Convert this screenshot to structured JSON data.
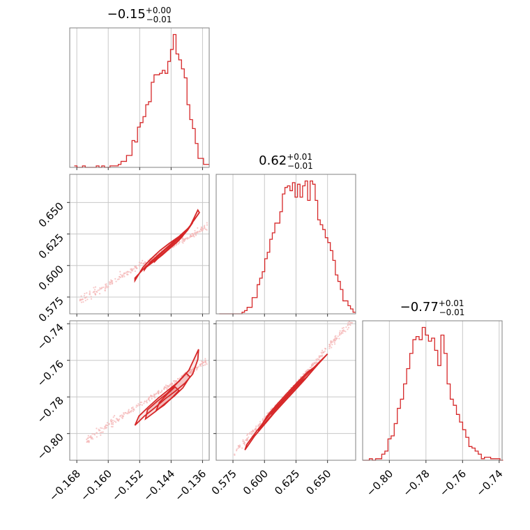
{
  "chart_data": {
    "type": "corner",
    "color": "#d62728",
    "point_color": "#f4b6b6",
    "grid": true,
    "parameters": [
      {
        "title": {
          "value": "−0.15",
          "plus": "+0.00",
          "minus": "−0.01"
        },
        "ticks": [
          -0.168,
          -0.16,
          -0.152,
          -0.144,
          -0.136
        ],
        "tick_labels": [
          "−0.168",
          "−0.160",
          "−0.152",
          "−0.144",
          "−0.136"
        ],
        "range": [
          -0.1698,
          -0.1343
        ],
        "hist": {
          "x": [
            -0.1683,
            -0.1676,
            -0.1669,
            -0.1662,
            -0.1655,
            -0.1648,
            -0.1641,
            -0.1634,
            -0.1627,
            -0.162,
            -0.1613,
            -0.1606,
            -0.1599,
            -0.1592,
            -0.1585,
            -0.1578,
            -0.1571,
            -0.1564,
            -0.1557,
            -0.155,
            -0.1543,
            -0.1536,
            -0.1529,
            -0.1522,
            -0.1515,
            -0.1508,
            -0.1501,
            -0.1494,
            -0.1487,
            -0.148,
            -0.1473,
            -0.1466,
            -0.1459,
            -0.1452,
            -0.1445,
            -0.1438,
            -0.1431,
            -0.1424,
            -0.1417,
            -0.141,
            -0.1403,
            -0.1396,
            -0.1389,
            -0.1382,
            -0.1375,
            -0.1368,
            -0.1361,
            -0.1354,
            -0.1347
          ],
          "counts": [
            1,
            0,
            0,
            1,
            0,
            0,
            0,
            0,
            1,
            0,
            1,
            0,
            0,
            1,
            1,
            1,
            2,
            4,
            4,
            8,
            8,
            18,
            17,
            27,
            30,
            34,
            42,
            44,
            57,
            62,
            62,
            63,
            65,
            63,
            71,
            79,
            89,
            76,
            72,
            66,
            60,
            42,
            32,
            26,
            16,
            6,
            6,
            2,
            2
          ]
        }
      },
      {
        "title": {
          "value": "0.62",
          "plus": "+0.01",
          "minus": "−0.01"
        },
        "ticks": [
          0.575,
          0.6,
          0.625,
          0.65
        ],
        "tick_labels": [
          "0.575",
          "0.600",
          "0.625",
          "0.650"
        ],
        "range": [
          0.5617,
          0.6723
        ],
        "hist": {
          "x": [
            0.5652,
            0.5672,
            0.5692,
            0.5712,
            0.5732,
            0.5752,
            0.5772,
            0.5792,
            0.5812,
            0.5832,
            0.5852,
            0.5872,
            0.5892,
            0.5912,
            0.5932,
            0.5952,
            0.5972,
            0.5992,
            0.6012,
            0.6032,
            0.6052,
            0.6072,
            0.6092,
            0.6112,
            0.6132,
            0.6152,
            0.6172,
            0.6192,
            0.6212,
            0.6232,
            0.6252,
            0.6272,
            0.6292,
            0.6312,
            0.6332,
            0.6352,
            0.6372,
            0.6392,
            0.6412,
            0.6432,
            0.6452,
            0.6472,
            0.6492,
            0.6512,
            0.6532,
            0.6552,
            0.6572,
            0.6592,
            0.6612,
            0.6632,
            0.6652,
            0.6672,
            0.6692,
            0.6712
          ],
          "counts": [
            0,
            0,
            0,
            0,
            0,
            0,
            0,
            0,
            0,
            1,
            2,
            4,
            4,
            10,
            10,
            18,
            22,
            26,
            34,
            38,
            46,
            50,
            56,
            56,
            63,
            74,
            78,
            79,
            76,
            81,
            72,
            80,
            72,
            79,
            82,
            70,
            82,
            80,
            70,
            58,
            55,
            52,
            47,
            44,
            39,
            33,
            24,
            20,
            15,
            8,
            8,
            5,
            3,
            1
          ]
        }
      },
      {
        "title": {
          "value": "−0.77",
          "plus": "+0.01",
          "minus": "−0.01"
        },
        "ticks": [
          -0.8,
          -0.78,
          -0.76,
          -0.74
        ],
        "tick_labels": [
          "−0.80",
          "−0.78",
          "−0.76",
          "−0.74"
        ],
        "range": [
          -0.8146,
          -0.7384
        ],
        "hist": {
          "x": [
            -0.8135,
            -0.8118,
            -0.8101,
            -0.8084,
            -0.8067,
            -0.805,
            -0.8033,
            -0.8016,
            -0.7999,
            -0.7982,
            -0.7965,
            -0.7948,
            -0.7931,
            -0.7914,
            -0.7897,
            -0.788,
            -0.7863,
            -0.7846,
            -0.7829,
            -0.7812,
            -0.7795,
            -0.7778,
            -0.7761,
            -0.7744,
            -0.7727,
            -0.771,
            -0.7693,
            -0.7676,
            -0.7659,
            -0.7642,
            -0.7625,
            -0.7608,
            -0.7591,
            -0.7574,
            -0.7557,
            -0.754,
            -0.7523,
            -0.7506,
            -0.7489,
            -0.7472,
            -0.7455,
            -0.7438,
            -0.7421,
            -0.7404,
            -0.7387
          ],
          "counts": [
            0,
            0,
            1,
            0,
            1,
            1,
            4,
            6,
            14,
            16,
            24,
            34,
            40,
            50,
            60,
            70,
            79,
            81,
            79,
            87,
            82,
            78,
            80,
            72,
            62,
            82,
            70,
            50,
            40,
            36,
            30,
            25,
            20,
            15,
            9,
            8,
            6,
            4,
            1,
            2,
            2,
            1,
            1,
            1,
            0
          ]
        }
      }
    ],
    "pairs": [
      {
        "x_param": 0,
        "y_param": 1,
        "slope": 1.815,
        "x0": -0.147,
        "y0": 0.609,
        "x_range": [
          -0.1672,
          -0.1347
        ],
        "contours": [
          {
            "x": [
              -0.1532,
              -0.1505,
              -0.148,
              -0.1455,
              -0.1435,
              -0.1415,
              -0.1392,
              -0.1372,
              -0.1368,
              -0.1395,
              -0.142,
              -0.1445,
              -0.1468,
              -0.1492,
              -0.1512,
              -0.1532
            ],
            "y": [
              0.59,
              0.599,
              0.6055,
              0.6125,
              0.6175,
              0.623,
              0.631,
              0.644,
              0.642,
              0.63,
              0.623,
              0.6175,
              0.612,
              0.605,
              0.5985,
              0.588
            ]
          },
          {
            "x": [
              -0.1508,
              -0.1485,
              -0.1462,
              -0.144,
              -0.142,
              -0.1398,
              -0.1385,
              -0.1405,
              -0.1428,
              -0.145,
              -0.1472,
              -0.1494,
              -0.1508
            ],
            "y": [
              0.5975,
              0.603,
              0.609,
              0.615,
              0.62,
              0.628,
              0.634,
              0.6265,
              0.6205,
              0.6145,
              0.6085,
              0.6025,
              0.5965
            ]
          },
          {
            "x": [
              -0.1482,
              -0.1462,
              -0.1442,
              -0.1425,
              -0.141,
              -0.1428,
              -0.1446,
              -0.1466,
              -0.1482
            ],
            "y": [
              0.6035,
              0.6085,
              0.614,
              0.6185,
              0.6235,
              0.618,
              0.6135,
              0.608,
              0.603
            ]
          }
        ]
      },
      {
        "x_param": 0,
        "y_param": 2,
        "slope": 1.4,
        "x0": -0.147,
        "y0": -0.7773,
        "x_range": [
          -0.1655,
          -0.1347
        ],
        "contours": [
          {
            "x": [
              -0.1532,
              -0.1508,
              -0.1482,
              -0.1455,
              -0.143,
              -0.1405,
              -0.1385,
              -0.1372,
              -0.137,
              -0.1395,
              -0.142,
              -0.1446,
              -0.1472,
              -0.1498,
              -0.1522,
              -0.1532
            ],
            "y": [
              -0.7955,
              -0.7905,
              -0.786,
              -0.781,
              -0.777,
              -0.7725,
              -0.7675,
              -0.7595,
              -0.754,
              -0.7655,
              -0.7715,
              -0.776,
              -0.7805,
              -0.7855,
              -0.7905,
              -0.7955
            ]
          },
          {
            "x": [
              -0.1505,
              -0.148,
              -0.1455,
              -0.1432,
              -0.141,
              -0.1392,
              -0.1402,
              -0.1425,
              -0.145,
              -0.1476,
              -0.15,
              -0.1505
            ],
            "y": [
              -0.792,
              -0.788,
              -0.7835,
              -0.7795,
              -0.775,
              -0.769,
              -0.767,
              -0.7725,
              -0.778,
              -0.7825,
              -0.787,
              -0.792
            ]
          },
          {
            "x": [
              -0.1478,
              -0.1458,
              -0.1438,
              -0.142,
              -0.143,
              -0.145,
              -0.147,
              -0.1478
            ],
            "y": [
              -0.7875,
              -0.7845,
              -0.7805,
              -0.7765,
              -0.7745,
              -0.7785,
              -0.783,
              -0.7875
            ]
          }
        ]
      },
      {
        "x_param": 1,
        "y_param": 2,
        "slope": 0.768,
        "x0": 0.619,
        "y0": -0.7773,
        "x_range": [
          0.576,
          0.67
        ],
        "contours": [
          {
            "x": [
              0.5845,
              0.592,
              0.6,
              0.608,
              0.616,
              0.624,
              0.632,
              0.64,
              0.648,
              0.65,
              0.642,
              0.634,
              0.626,
              0.618,
              0.61,
              0.602,
              0.594,
              0.586,
              0.5845
            ],
            "y": [
              -0.809,
              -0.8015,
              -0.795,
              -0.7885,
              -0.7825,
              -0.7765,
              -0.7705,
              -0.764,
              -0.758,
              -0.7565,
              -0.762,
              -0.7675,
              -0.773,
              -0.779,
              -0.785,
              -0.7915,
              -0.7985,
              -0.806,
              -0.809
            ]
          },
          {
            "x": [
              0.595,
              0.603,
              0.611,
              0.619,
              0.627,
              0.635,
              0.642,
              0.634,
              0.626,
              0.618,
              0.61,
              0.602,
              0.595
            ],
            "y": [
              -0.7985,
              -0.792,
              -0.786,
              -0.78,
              -0.774,
              -0.768,
              -0.7625,
              -0.7665,
              -0.772,
              -0.778,
              -0.784,
              -0.7905,
              -0.7985
            ]
          },
          {
            "x": [
              0.605,
              0.613,
              0.621,
              0.629,
              0.634,
              0.626,
              0.618,
              0.61,
              0.605
            ],
            "y": [
              -0.7895,
              -0.7835,
              -0.7775,
              -0.7715,
              -0.769,
              -0.7735,
              -0.7795,
              -0.7855,
              -0.7895
            ]
          }
        ]
      }
    ]
  }
}
